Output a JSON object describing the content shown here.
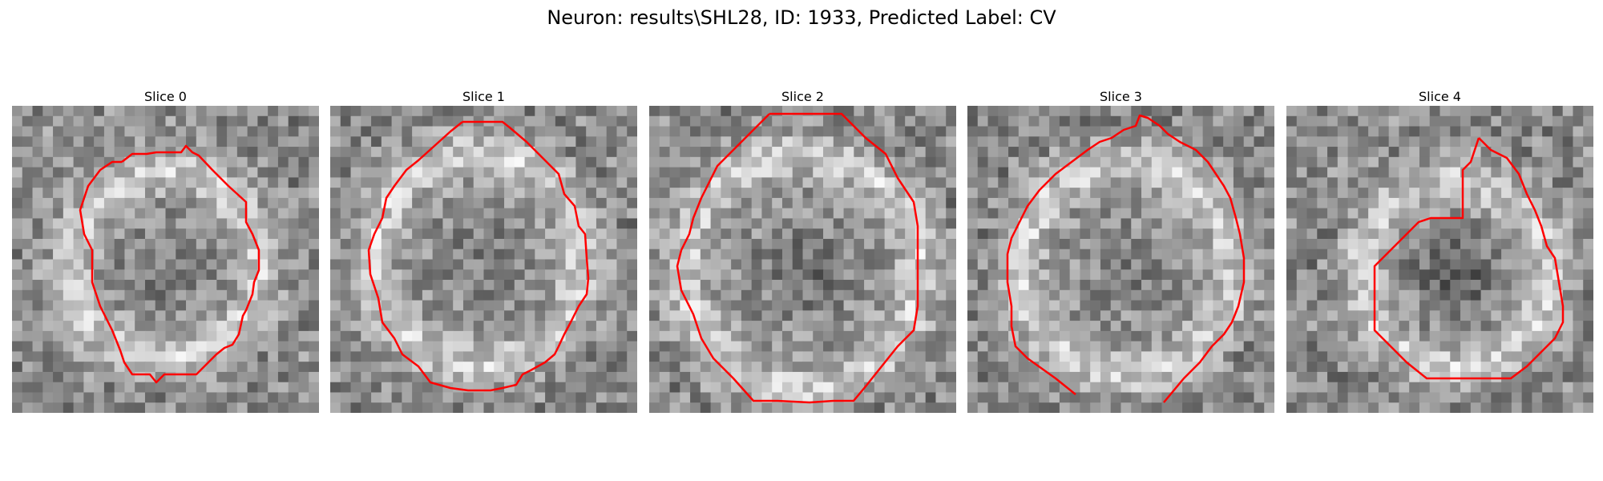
{
  "figure": {
    "suptitle": "Neuron: results\\SHL28, ID: 1933, Predicted Label: CV",
    "contour_color": "#ff0000"
  },
  "slices": [
    {
      "title": "Slice 0"
    },
    {
      "title": "Slice 1"
    },
    {
      "title": "Slice 2"
    },
    {
      "title": "Slice 3"
    },
    {
      "title": "Slice 4"
    }
  ]
}
